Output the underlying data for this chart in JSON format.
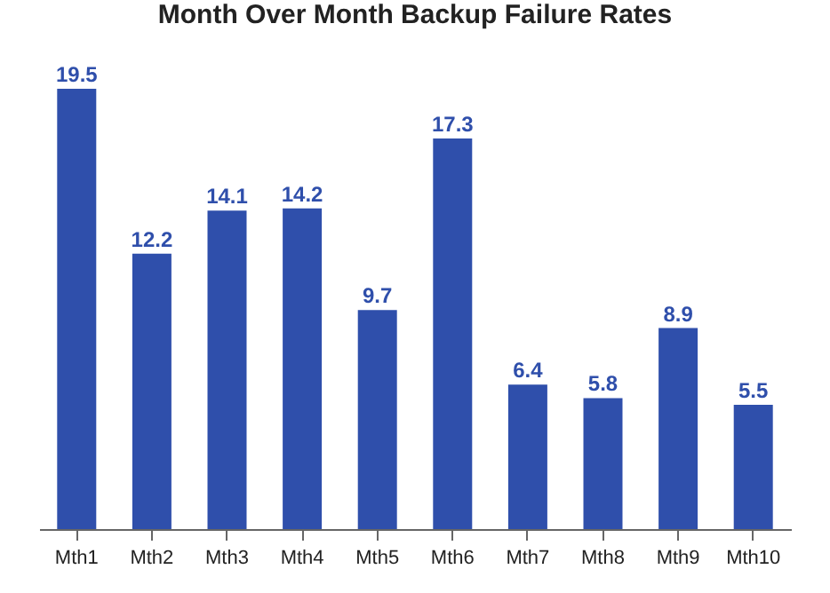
{
  "chart_data": {
    "type": "bar",
    "title": "Month Over Month Backup Failure Rates",
    "categories": [
      "Mth1",
      "Mth2",
      "Mth3",
      "Mth4",
      "Mth5",
      "Mth6",
      "Mth7",
      "Mth8",
      "Mth9",
      "Mth10"
    ],
    "values": [
      19.5,
      12.2,
      14.1,
      14.2,
      9.7,
      17.3,
      6.4,
      5.8,
      8.9,
      5.5
    ],
    "color": "#2f4fab",
    "data_labels": true,
    "grid": false,
    "tick_labels": "x"
  }
}
